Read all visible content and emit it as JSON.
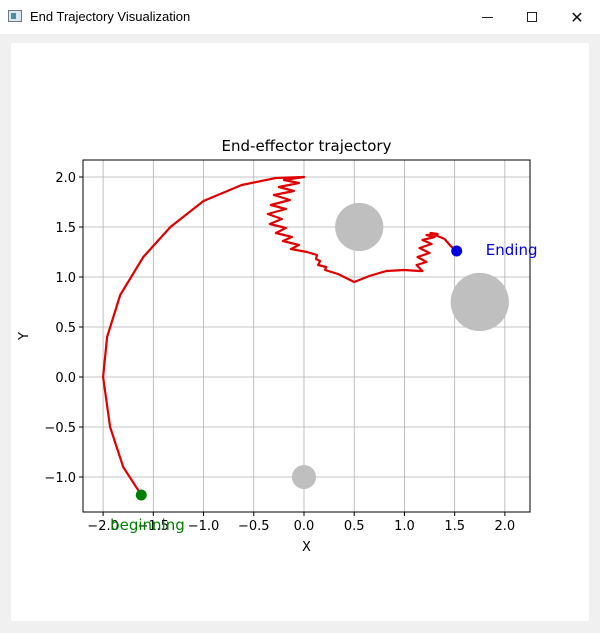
{
  "window": {
    "title": "End Trajectory Visualization",
    "icon": "app-window-icon",
    "minimize_icon": "minimize-icon",
    "maximize_icon": "maximize-icon",
    "close_icon": "close-icon",
    "close_glyph": "✕"
  },
  "chart_data": {
    "type": "line",
    "title": "End-effector trajectory",
    "xlabel": "X",
    "ylabel": "Y",
    "xlim": [
      -2.2,
      2.25
    ],
    "ylim": [
      -1.35,
      2.17
    ],
    "xticks": [
      -2.0,
      -1.5,
      -1.0,
      -0.5,
      0.0,
      0.5,
      1.0,
      1.5,
      2.0
    ],
    "yticks": [
      -1.0,
      -0.5,
      0.0,
      0.5,
      1.0,
      1.5,
      2.0
    ],
    "xtick_labels": [
      "−2.0",
      "−1.5",
      "−1.0",
      "−0.5",
      "0.0",
      "0.5",
      "1.0",
      "1.5",
      "2.0"
    ],
    "ytick_labels": [
      "−1.0",
      "−0.5",
      "0.0",
      "0.5",
      "1.0",
      "1.5",
      "2.0"
    ],
    "grid": true,
    "trajectory_color": "#e00000",
    "start_color": "#008000",
    "end_color": "#0000e0",
    "obstacle_color": "#bfbfbf",
    "trajectory": [
      [
        -1.62,
        -1.18
      ],
      [
        -1.8,
        -0.9
      ],
      [
        -1.93,
        -0.5
      ],
      [
        -2.0,
        0.0
      ],
      [
        -1.96,
        0.4
      ],
      [
        -1.83,
        0.82
      ],
      [
        -1.6,
        1.2
      ],
      [
        -1.33,
        1.5
      ],
      [
        -1.0,
        1.76
      ],
      [
        -0.62,
        1.92
      ],
      [
        -0.28,
        1.99
      ],
      [
        0.0,
        2.0
      ],
      [
        -0.2,
        1.97
      ],
      [
        -0.05,
        1.94
      ],
      [
        -0.25,
        1.9
      ],
      [
        -0.1,
        1.86
      ],
      [
        -0.3,
        1.82
      ],
      [
        -0.14,
        1.77
      ],
      [
        -0.33,
        1.72
      ],
      [
        -0.18,
        1.68
      ],
      [
        -0.36,
        1.63
      ],
      [
        -0.22,
        1.58
      ],
      [
        -0.34,
        1.53
      ],
      [
        -0.18,
        1.49
      ],
      [
        -0.28,
        1.44
      ],
      [
        -0.12,
        1.4
      ],
      [
        -0.21,
        1.36
      ],
      [
        -0.05,
        1.32
      ],
      [
        -0.13,
        1.28
      ],
      [
        0.03,
        1.25
      ],
      [
        0.13,
        1.22
      ],
      [
        0.12,
        1.18
      ],
      [
        0.16,
        1.16
      ],
      [
        0.14,
        1.12
      ],
      [
        0.22,
        1.1
      ],
      [
        0.21,
        1.07
      ],
      [
        0.34,
        1.03
      ],
      [
        0.5,
        0.95
      ],
      [
        0.65,
        1.01
      ],
      [
        0.82,
        1.06
      ],
      [
        1.0,
        1.07
      ],
      [
        1.15,
        1.06
      ],
      [
        1.18,
        1.06
      ],
      [
        1.12,
        1.12
      ],
      [
        1.22,
        1.15
      ],
      [
        1.13,
        1.2
      ],
      [
        1.25,
        1.24
      ],
      [
        1.15,
        1.29
      ],
      [
        1.27,
        1.33
      ],
      [
        1.18,
        1.37
      ],
      [
        1.3,
        1.4
      ],
      [
        1.22,
        1.42
      ],
      [
        1.33,
        1.43
      ],
      [
        1.26,
        1.44
      ],
      [
        1.4,
        1.38
      ],
      [
        1.46,
        1.31
      ],
      [
        1.52,
        1.26
      ]
    ],
    "start_point": [
      -1.62,
      -1.18
    ],
    "end_point": [
      1.52,
      1.26
    ],
    "obstacles": [
      {
        "x": 0.55,
        "y": 1.5,
        "r": 0.24
      },
      {
        "x": 1.75,
        "y": 0.75,
        "r": 0.29
      },
      {
        "x": 0.0,
        "y": -1.0,
        "r": 0.12
      }
    ],
    "annotations": [
      {
        "text": "beginning",
        "x": -1.93,
        "y": -1.48,
        "color": "#008000"
      },
      {
        "text": "Ending",
        "x": 1.81,
        "y": 1.27,
        "color": "#0000e0"
      }
    ]
  }
}
